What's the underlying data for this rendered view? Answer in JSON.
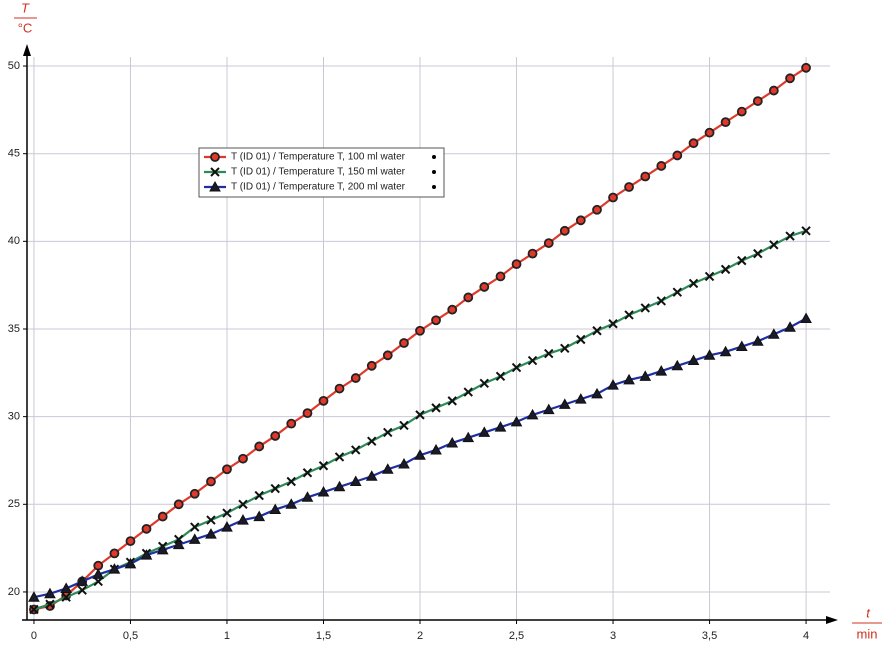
{
  "chart_data": {
    "type": "line",
    "y_label_symbol": "T",
    "y_label_unit": "°C",
    "x_label_symbol": "t",
    "x_label_unit": "min",
    "x": [
      0,
      0.083,
      0.167,
      0.25,
      0.333,
      0.417,
      0.5,
      0.583,
      0.667,
      0.75,
      0.833,
      0.917,
      1,
      1.083,
      1.167,
      1.25,
      1.333,
      1.417,
      1.5,
      1.583,
      1.667,
      1.75,
      1.833,
      1.917,
      2,
      2.083,
      2.167,
      2.25,
      2.333,
      2.417,
      2.5,
      2.583,
      2.667,
      2.75,
      2.833,
      2.917,
      3,
      3.083,
      3.167,
      3.25,
      3.333,
      3.417,
      3.5,
      3.583,
      3.667,
      3.75,
      3.833,
      3.917,
      4
    ],
    "series": [
      {
        "name": "T (ID 01) / Temperature T, 100 ml water",
        "color": "#e0392b",
        "marker": "circle",
        "values": [
          19.0,
          19.2,
          19.8,
          20.6,
          21.5,
          22.2,
          22.9,
          23.6,
          24.3,
          25.0,
          25.6,
          26.3,
          27.0,
          27.6,
          28.3,
          28.9,
          29.6,
          30.2,
          30.9,
          31.6,
          32.2,
          32.9,
          33.5,
          34.2,
          34.9,
          35.5,
          36.1,
          36.8,
          37.4,
          38.0,
          38.7,
          39.3,
          39.9,
          40.6,
          41.2,
          41.8,
          42.5,
          43.1,
          43.7,
          44.3,
          44.9,
          45.6,
          46.2,
          46.8,
          47.4,
          48.0,
          48.6,
          49.3,
          49.9
        ]
      },
      {
        "name": "T (ID 01) / Temperature T, 150 ml water",
        "color": "#2e8b57",
        "marker": "x",
        "values": [
          19.0,
          19.3,
          19.7,
          20.1,
          20.6,
          21.3,
          21.7,
          22.2,
          22.6,
          23.0,
          23.7,
          24.1,
          24.5,
          25.0,
          25.5,
          25.9,
          26.3,
          26.8,
          27.2,
          27.7,
          28.1,
          28.6,
          29.1,
          29.5,
          30.1,
          30.5,
          30.9,
          31.4,
          31.9,
          32.3,
          32.8,
          33.2,
          33.6,
          33.9,
          34.4,
          34.9,
          35.3,
          35.8,
          36.2,
          36.6,
          37.1,
          37.6,
          38.0,
          38.4,
          38.9,
          39.3,
          39.8,
          40.3,
          40.6
        ]
      },
      {
        "name": "T (ID 01) / Temperature T, 200 ml water",
        "color": "#1f2fa0",
        "marker": "triangle",
        "values": [
          19.7,
          19.9,
          20.2,
          20.6,
          21.0,
          21.3,
          21.6,
          22.1,
          22.4,
          22.7,
          23.0,
          23.3,
          23.7,
          24.1,
          24.3,
          24.7,
          25.0,
          25.4,
          25.7,
          26.0,
          26.3,
          26.6,
          27.0,
          27.3,
          27.8,
          28.1,
          28.5,
          28.8,
          29.1,
          29.4,
          29.7,
          30.1,
          30.4,
          30.7,
          31.0,
          31.3,
          31.8,
          32.1,
          32.3,
          32.6,
          32.9,
          33.2,
          33.5,
          33.7,
          34.0,
          34.3,
          34.7,
          35.1,
          35.6
        ]
      }
    ],
    "xlim": [
      -0.036,
      4.124
    ],
    "ylim": [
      18.4,
      51.2
    ],
    "xticks": [
      0,
      {
        "value": 0.5,
        "label": "0,5"
      },
      1,
      {
        "value": 1.5,
        "label": "1,5"
      },
      2,
      {
        "value": 2.5,
        "label": "2,5"
      },
      3,
      {
        "value": 3.5,
        "label": "3,5"
      },
      4
    ],
    "yticks": [
      20,
      25,
      30,
      35,
      40,
      45,
      50
    ],
    "grid": true
  }
}
